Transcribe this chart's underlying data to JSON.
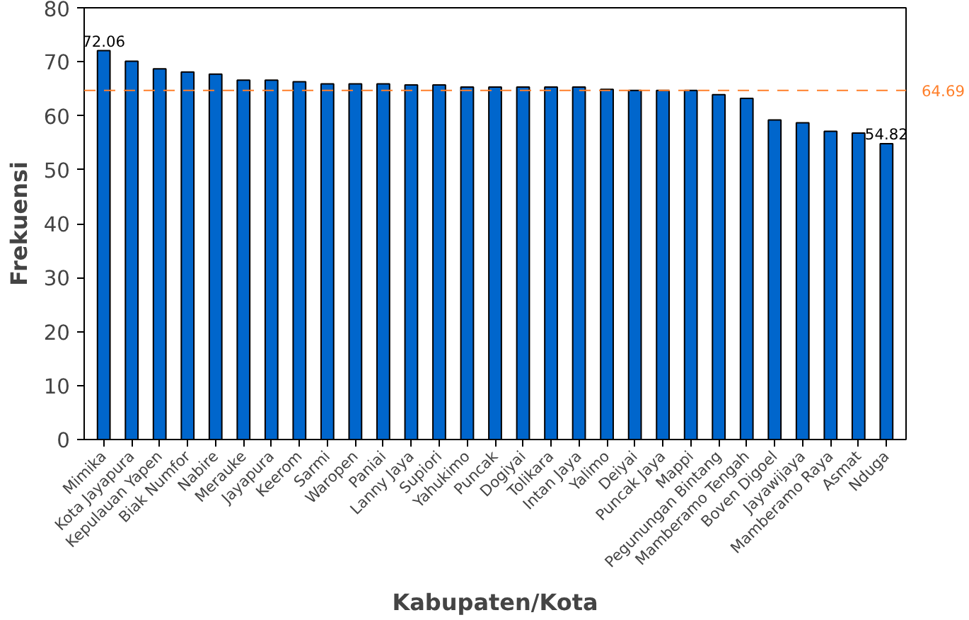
{
  "chart_data": {
    "type": "bar",
    "xlabel": "Kabupaten/Kota",
    "ylabel": "Frekuensi",
    "categories": [
      "Mimika",
      "Kota Jayapura",
      "Kepulauan Yapen",
      "Biak Numfor",
      "Nabire",
      "Merauke",
      "Jayapura",
      "Keerom",
      "Sarmi",
      "Waropen",
      "Paniai",
      "Lanny Jaya",
      "Supiori",
      "Yahukimo",
      "Puncak",
      "Dogiyai",
      "Tolikara",
      "Intan Jaya",
      "Yalimo",
      "Deiyai",
      "Puncak Jaya",
      "Mappi",
      "Pegunungan Bintang",
      "Mamberamo Tengah",
      "Boven Digoel",
      "Jayawijaya",
      "Mamberamo Raya",
      "Asmat",
      "Nduga"
    ],
    "values": [
      72.06,
      70.1,
      68.7,
      68.1,
      67.7,
      66.6,
      66.6,
      66.3,
      65.9,
      65.9,
      65.9,
      65.7,
      65.7,
      65.3,
      65.3,
      65.3,
      65.3,
      65.3,
      64.9,
      64.7,
      64.7,
      64.7,
      63.9,
      63.2,
      59.2,
      58.7,
      57.1,
      56.8,
      54.82
    ],
    "value_labels": [
      "72.06",
      null,
      null,
      null,
      null,
      null,
      null,
      null,
      null,
      null,
      null,
      null,
      null,
      null,
      null,
      null,
      null,
      null,
      null,
      null,
      null,
      null,
      null,
      null,
      null,
      null,
      null,
      null,
      "54.82"
    ],
    "color": "#0066cc",
    "ylim": [
      0,
      80
    ],
    "yticks": [
      0,
      10,
      20,
      30,
      40,
      50,
      60,
      70,
      80
    ],
    "ref_lines": [
      {
        "axis": "y",
        "value": 64.69,
        "label": "64.69",
        "color": "#ff7f2a",
        "line_style": "dashed"
      }
    ],
    "grid": false
  }
}
